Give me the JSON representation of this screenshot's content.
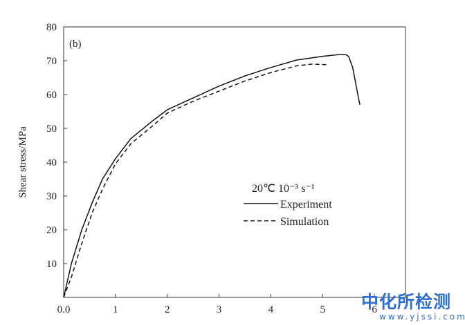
{
  "chart_data": {
    "type": "line",
    "panel_label": "(b)",
    "xlabel": "",
    "ylabel": "Shear stress/MPa",
    "xlim": [
      0,
      6.6
    ],
    "ylim": [
      0,
      80
    ],
    "x_ticks": [
      0,
      1,
      2,
      3,
      4,
      5,
      6
    ],
    "x_tick_labels": [
      "0.0",
      "1",
      "2",
      "3",
      "4",
      "5",
      "6"
    ],
    "y_ticks": [
      10,
      20,
      30,
      40,
      50,
      60,
      70,
      80
    ],
    "y_tick_labels": [
      "10",
      "20",
      "30",
      "40",
      "50",
      "60",
      "70",
      "80"
    ],
    "grid": false,
    "legend": {
      "placement": "center-right",
      "title": "20℃  10⁻³ s⁻¹",
      "entries": [
        "Experiment",
        "Simulation"
      ]
    },
    "series": [
      {
        "name": "Experiment",
        "style": "solid",
        "x": [
          0,
          0.15,
          0.35,
          0.55,
          0.75,
          1.0,
          1.3,
          1.7,
          2.0,
          2.5,
          3.0,
          3.5,
          4.0,
          4.5,
          5.0,
          5.3,
          5.45,
          5.5,
          5.58,
          5.63,
          5.68,
          5.72
        ],
        "y": [
          0,
          10,
          20,
          28,
          35,
          41,
          47,
          52,
          55.5,
          59,
          62.5,
          65.5,
          68,
          70.2,
          71.3,
          71.8,
          71.8,
          71.3,
          68,
          64,
          60,
          57
        ]
      },
      {
        "name": "Simulation",
        "style": "dashed",
        "x": [
          0,
          0.15,
          0.35,
          0.55,
          0.75,
          1.0,
          1.3,
          1.7,
          2.0,
          2.5,
          3.0,
          3.5,
          4.0,
          4.5,
          4.8,
          5.1
        ],
        "y": [
          0,
          6,
          16,
          25,
          32,
          39.5,
          45.5,
          50.5,
          54.5,
          58,
          61,
          64,
          66.5,
          68.5,
          69,
          68.8
        ]
      }
    ]
  },
  "watermark": {
    "text": "中化所检测",
    "url": "www.yjssi.com"
  }
}
